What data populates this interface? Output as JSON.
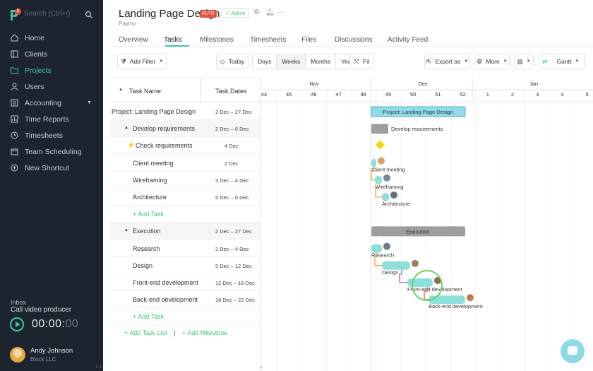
{
  "sidebar": {
    "search_placeholder": "Search (Ctrl+/)",
    "logo_badge": "8",
    "items": [
      {
        "label": "Home",
        "icon": "home-icon"
      },
      {
        "label": "Clients",
        "icon": "clients-icon"
      },
      {
        "label": "Projects",
        "icon": "folder-icon",
        "active": true
      },
      {
        "label": "Users",
        "icon": "user-icon"
      },
      {
        "label": "Accounting",
        "icon": "invoice-icon",
        "has_caret": true
      },
      {
        "label": "Time Reports",
        "icon": "reports-icon"
      },
      {
        "label": "Timesheets",
        "icon": "clock-icon"
      },
      {
        "label": "Team Scheduling",
        "icon": "calendar-icon"
      },
      {
        "label": "New Shortcut",
        "icon": "plus-circle-icon"
      }
    ],
    "inbox_label": "Inbox",
    "inbox_subtitle": "Call video producer",
    "timer": {
      "main": "00:00:",
      "dim": "00"
    },
    "user": {
      "name": "Andy Johnson",
      "company": "Block LLC"
    }
  },
  "header": {
    "title": "Landing Page Design",
    "code": "#LPD",
    "status": "Active",
    "subtitle": "Paymo",
    "tabs": [
      "Overview",
      "Tasks",
      "Milestones",
      "Timesheets",
      "Files",
      "Discussions",
      "Activity Feed"
    ],
    "active_tab": "Tasks"
  },
  "toolbar": {
    "add_filter": "Add Filter",
    "today": "Today",
    "scale": [
      "Days",
      "Weeks",
      "Months",
      "Years"
    ],
    "active_scale": "Weeks",
    "fit": "Fit",
    "export": "Export as",
    "more": "More",
    "view": "Gantt"
  },
  "table": {
    "col_task": "Task Name",
    "col_dates": "Task Dates",
    "rows": [
      {
        "name": "Project: Landing Page Design",
        "dates": "2 Dec – 27 Dec",
        "kind": "project"
      },
      {
        "name": "Develop requirements",
        "dates": "2 Dec – 6 Dec",
        "kind": "group"
      },
      {
        "name": "Check requirements",
        "dates": "4 Dec",
        "kind": "milestone"
      },
      {
        "name": "Client meeting",
        "dates": "2 Dec",
        "kind": "task"
      },
      {
        "name": "Wireframing",
        "dates": "3 Dec – 4 Dec",
        "kind": "task"
      },
      {
        "name": "Architecture",
        "dates": "5 Dec – 6 Dec",
        "kind": "task"
      },
      {
        "name": "Add Task",
        "dates": "",
        "kind": "add"
      },
      {
        "name": "Execution",
        "dates": "2 Dec – 27 Dec",
        "kind": "group"
      },
      {
        "name": "Research",
        "dates": "2 Dec – 4 Dec",
        "kind": "task"
      },
      {
        "name": "Design",
        "dates": "5 Dec – 12 Dec",
        "kind": "task"
      },
      {
        "name": "Front-end development",
        "dates": "12 Dec – 18 Dec",
        "kind": "task"
      },
      {
        "name": "Back-end development",
        "dates": "18 Dec – 22 Dec",
        "kind": "task"
      },
      {
        "name": "Add Task",
        "dates": "",
        "kind": "add"
      }
    ],
    "add_task_list": "Add Task List",
    "separator": "|",
    "add_milestone": "Add Milestone"
  },
  "gantt": {
    "months": [
      "Nov",
      "Dec",
      "Jan"
    ],
    "weeks": [
      "44",
      "45",
      "46",
      "47",
      "48",
      "49",
      "50",
      "51",
      "52",
      "1",
      "2",
      "3",
      "4",
      "5"
    ],
    "bar_labels": {
      "project": "Project: Landing Page Design",
      "develop": "Develop requirements",
      "execution": "Execution",
      "client_meeting": "Client meeting",
      "wireframing": "Wireframing",
      "architecture": "Architecture",
      "research": "Research",
      "design": "Design",
      "frontend": "Front-end development",
      "backend": "Back-end development"
    },
    "colors": {
      "task": "#8ee0dc",
      "group": "#9e9e9e",
      "project": "#8fdbe8",
      "milestone": "#f5d400",
      "accent": "#3ec5a0"
    }
  }
}
